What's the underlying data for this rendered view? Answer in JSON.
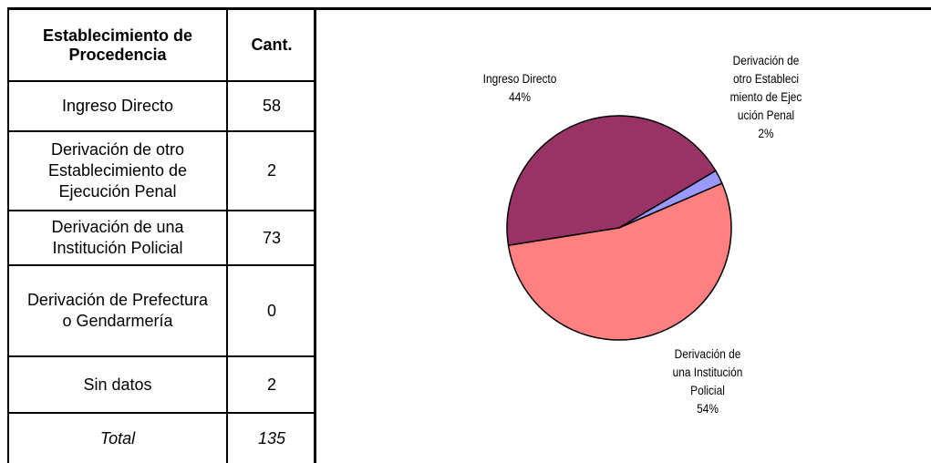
{
  "table": {
    "header": [
      "Establecimiento de Procedencia",
      "Cant."
    ],
    "rows": [
      [
        "Ingreso Directo",
        58
      ],
      [
        "Derivación de otro Establecimiento de Ejecución Penal",
        2
      ],
      [
        "Derivación de una Institución Policial",
        73
      ],
      [
        "Derivación de Prefectura o Gendarmería",
        0
      ],
      [
        "Sin datos",
        2
      ]
    ],
    "total": [
      "Total",
      135
    ]
  },
  "chart_data": {
    "type": "pie",
    "categories": [
      "Ingreso Directo",
      "Derivación de otro Establecimiento de Ejecución Penal",
      "Derivación de una Institución Policial"
    ],
    "values": [
      44,
      2,
      54
    ],
    "value_labels": [
      "44%",
      "2%",
      "54%"
    ],
    "colors": [
      "#993366",
      "#9999ff",
      "#ff8080"
    ]
  }
}
